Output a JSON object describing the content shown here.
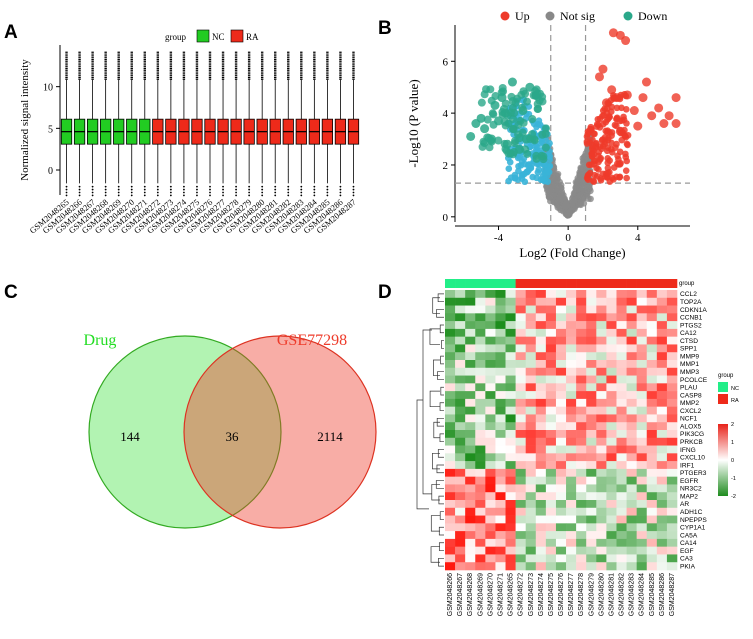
{
  "panels": {
    "A": "A",
    "B": "B",
    "C": "C",
    "D": "D"
  },
  "chart_data": [
    {
      "id": "boxplot",
      "type": "box",
      "title": "",
      "xlabel": "",
      "ylabel": "Normalized signal intensity",
      "ylim": [
        -3,
        15
      ],
      "yticks": [
        0,
        5,
        10
      ],
      "legend_title": "group",
      "legend": [
        {
          "name": "NC",
          "color": "#22cc22"
        },
        {
          "name": "RA",
          "color": "#ee2a1a"
        }
      ],
      "categories": [
        "GSM2048265",
        "GSM2048266",
        "GSM2048267",
        "GSM2048268",
        "GSM2048269",
        "GSM2048270",
        "GSM2048271",
        "GSM2048272",
        "GSM2048273",
        "GSM2048274",
        "GSM2048275",
        "GSM2048276",
        "GSM2048277",
        "GSM2048278",
        "GSM2048279",
        "GSM2048280",
        "GSM2048281",
        "GSM2048282",
        "GSM2048283",
        "GSM2048284",
        "GSM2048285",
        "GSM2048286",
        "GSM2048287"
      ],
      "groups": [
        "NC",
        "NC",
        "NC",
        "NC",
        "NC",
        "NC",
        "NC",
        "RA",
        "RA",
        "RA",
        "RA",
        "RA",
        "RA",
        "RA",
        "RA",
        "RA",
        "RA",
        "RA",
        "RA",
        "RA",
        "RA",
        "RA",
        "RA"
      ],
      "box": {
        "q1": 3.1,
        "median": 4.6,
        "q3": 6.1,
        "whisker_low": -1.6,
        "whisker_high": 10.8,
        "outlier_low": -3.0,
        "outlier_high": 14.2
      }
    },
    {
      "id": "volcano",
      "type": "scatter",
      "xlabel": "Log2 (Fold Change)",
      "ylabel": "-Log10 (P value)",
      "xlim": [
        -6.5,
        7
      ],
      "ylim": [
        -0.2,
        7.4
      ],
      "xticks": [
        -4,
        0,
        4
      ],
      "yticks": [
        0,
        2,
        4,
        6
      ],
      "thresholds": {
        "logfc": 1,
        "p_line": 1.3
      },
      "legend": [
        {
          "name": "Up",
          "color": "#ee3b2a"
        },
        {
          "name": "Not sig",
          "color": "#888888"
        },
        {
          "name": "Down",
          "color": "#2aa88a"
        }
      ],
      "highlight_up": [
        [
          3.0,
          7.0
        ],
        [
          2.6,
          7.1
        ],
        [
          3.3,
          6.8
        ],
        [
          2.0,
          5.7
        ],
        [
          1.8,
          5.4
        ],
        [
          4.5,
          5.2
        ],
        [
          2.5,
          4.9
        ],
        [
          5.2,
          4.2
        ],
        [
          5.8,
          3.9
        ],
        [
          5.5,
          3.6
        ],
        [
          6.2,
          3.6
        ],
        [
          4.8,
          3.9
        ],
        [
          3.4,
          4.7
        ],
        [
          2.8,
          4.6
        ],
        [
          6.2,
          4.6
        ],
        [
          4.3,
          4.6
        ],
        [
          3.8,
          4.1
        ],
        [
          2.2,
          4.4
        ],
        [
          4.0,
          3.5
        ],
        [
          3.0,
          3.3
        ]
      ],
      "highlight_down": [
        [
          -4.2,
          4.3
        ],
        [
          -5.0,
          3.8
        ],
        [
          -5.3,
          3.6
        ],
        [
          -4.8,
          3.4
        ],
        [
          -3.6,
          4.0
        ],
        [
          -3.8,
          4.6
        ],
        [
          -3.2,
          5.2
        ],
        [
          -2.2,
          5.0
        ],
        [
          -2.6,
          4.1
        ],
        [
          -4.4,
          3.0
        ],
        [
          -3.5,
          2.8
        ],
        [
          -2.8,
          2.6
        ],
        [
          -4.0,
          3.7
        ],
        [
          -2.4,
          3.0
        ],
        [
          -5.6,
          3.1
        ]
      ]
    },
    {
      "id": "venn",
      "type": "venn",
      "sets": [
        {
          "name": "Drug",
          "color": "#22dd22",
          "only": 144
        },
        {
          "name": "GSE77298",
          "color": "#ee3b2a",
          "only": 2114
        }
      ],
      "intersection": 36
    },
    {
      "id": "heatmap",
      "type": "heatmap",
      "annotation_label": "group",
      "legend_title": "group",
      "legend": [
        {
          "name": "NC",
          "color": "#22ee88"
        },
        {
          "name": "RA",
          "color": "#ee2a1a"
        }
      ],
      "scale_ticks": [
        2,
        1,
        0,
        -1,
        -2
      ],
      "columns": [
        "GSM2048266",
        "GSM2048267",
        "GSM2048268",
        "GSM2048269",
        "GSM2048270",
        "GSM2048271",
        "GSM2048265",
        "GSM2048272",
        "GSM2048273",
        "GSM2048274",
        "GSM2048275",
        "GSM2048276",
        "GSM2048277",
        "GSM2048278",
        "GSM2048279",
        "GSM2048280",
        "GSM2048281",
        "GSM2048282",
        "GSM2048283",
        "GSM2048284",
        "GSM2048285",
        "GSM2048286",
        "GSM2048287"
      ],
      "column_groups": [
        "NC",
        "NC",
        "NC",
        "NC",
        "NC",
        "NC",
        "NC",
        "RA",
        "RA",
        "RA",
        "RA",
        "RA",
        "RA",
        "RA",
        "RA",
        "RA",
        "RA",
        "RA",
        "RA",
        "RA",
        "RA",
        "RA",
        "RA"
      ],
      "rows": [
        "CCL2",
        "TOP2A",
        "CDKN1A",
        "CCNB1",
        "PTGS2",
        "CA12",
        "CTSD",
        "SPP1",
        "MMP9",
        "MMP1",
        "MMP3",
        "PCOLCE",
        "PLAU",
        "CASP8",
        "MMP2",
        "CXCL2",
        "NCF1",
        "ALOX5",
        "PIK3CG",
        "PRKCB",
        "IFNG",
        "CXCL10",
        "IRF1",
        "PTGER3",
        "EGFR",
        "NR3C2",
        "MAP2",
        "AR",
        "ADH1C",
        "NPEPPS",
        "CYP1A1",
        "CA5A",
        "CA14",
        "EGF",
        "CA3",
        "PKIA"
      ],
      "up_rows_count": 23,
      "up_in_NC_mean": -0.8,
      "up_in_RA_mean": 0.6
    }
  ]
}
